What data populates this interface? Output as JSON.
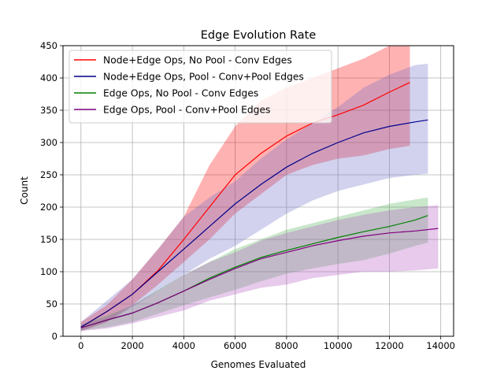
{
  "chart_data": {
    "type": "line",
    "title": "Edge Evolution Rate",
    "xlabel": "Genomes Evaluated",
    "ylabel": "Count",
    "xlim": [
      -700,
      14500
    ],
    "ylim": [
      0,
      450
    ],
    "xticks": [
      0,
      2000,
      4000,
      6000,
      8000,
      10000,
      12000,
      14000
    ],
    "xtick_labels": [
      "0",
      "2000",
      "4000",
      "6000",
      "8000",
      "10000",
      "12000",
      "14000"
    ],
    "yticks": [
      0,
      50,
      100,
      150,
      200,
      250,
      300,
      350,
      400,
      450
    ],
    "ytick_labels": [
      "0",
      "50",
      "100",
      "150",
      "200",
      "250",
      "300",
      "350",
      "400",
      "450"
    ],
    "grid": true,
    "legend_position": "top-left",
    "series": [
      {
        "name": "Node+Edge Ops, No Pool - Conv Edges",
        "color": "#ff0000",
        "band_color": "#ff0000",
        "x": [
          0,
          1000,
          2000,
          3000,
          4000,
          5000,
          6000,
          7000,
          8000,
          9000,
          10000,
          11000,
          12000,
          12800
        ],
        "mean": [
          14,
          38,
          65,
          102,
          150,
          200,
          250,
          283,
          310,
          330,
          343,
          358,
          378,
          393
        ],
        "lower": [
          8,
          22,
          48,
          80,
          115,
          150,
          190,
          220,
          250,
          265,
          275,
          280,
          290,
          295
        ],
        "upper": [
          22,
          48,
          88,
          135,
          185,
          265,
          325,
          365,
          385,
          400,
          415,
          430,
          450,
          450
        ]
      },
      {
        "name": "Node+Edge Ops, Pool - Conv+Pool Edges",
        "color": "#00008b",
        "band_color": "#6a6ac8",
        "x": [
          0,
          1000,
          2000,
          3000,
          4000,
          5000,
          6000,
          7000,
          8000,
          9000,
          10000,
          11000,
          12000,
          13000,
          13500
        ],
        "mean": [
          14,
          38,
          65,
          100,
          135,
          170,
          205,
          235,
          262,
          283,
          300,
          315,
          325,
          332,
          335
        ],
        "lower": [
          8,
          22,
          45,
          70,
          95,
          120,
          140,
          165,
          190,
          210,
          225,
          235,
          245,
          250,
          252
        ],
        "upper": [
          22,
          55,
          88,
          135,
          185,
          215,
          240,
          275,
          305,
          330,
          355,
          385,
          405,
          420,
          422
        ]
      },
      {
        "name": "Edge Ops, No Pool - Conv Edges",
        "color": "#008000",
        "band_color": "#4caf50",
        "x": [
          0,
          1000,
          2000,
          3000,
          4000,
          5000,
          6000,
          7000,
          8000,
          9000,
          10000,
          11000,
          12000,
          13000,
          13500
        ],
        "mean": [
          13,
          25,
          36,
          52,
          70,
          90,
          107,
          122,
          133,
          143,
          153,
          162,
          170,
          180,
          187
        ],
        "lower": [
          9,
          14,
          22,
          35,
          48,
          60,
          72,
          85,
          97,
          105,
          112,
          118,
          128,
          140,
          145
        ],
        "upper": [
          18,
          32,
          48,
          72,
          95,
          115,
          135,
          150,
          165,
          175,
          185,
          195,
          205,
          212,
          215
        ]
      },
      {
        "name": "Edge Ops, Pool - Conv+Pool Edges",
        "color": "#800080",
        "band_color": "#b050c0",
        "x": [
          0,
          1000,
          2000,
          3000,
          4000,
          5000,
          6000,
          7000,
          8000,
          9000,
          10000,
          11000,
          12000,
          13000,
          13900
        ],
        "mean": [
          13,
          25,
          36,
          52,
          70,
          88,
          105,
          120,
          130,
          140,
          148,
          155,
          160,
          163,
          167
        ],
        "lower": [
          8,
          12,
          20,
          30,
          40,
          55,
          65,
          75,
          80,
          90,
          95,
          100,
          100,
          102,
          105
        ],
        "upper": [
          18,
          30,
          48,
          70,
          95,
          115,
          130,
          148,
          160,
          170,
          180,
          188,
          195,
          200,
          203
        ]
      }
    ]
  }
}
